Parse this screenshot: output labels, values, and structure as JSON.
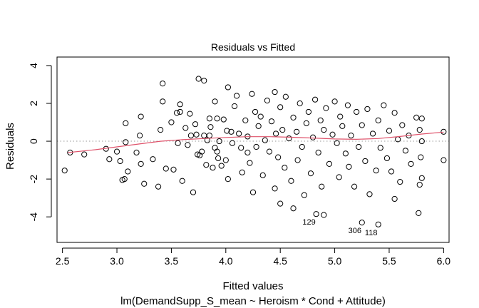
{
  "chart_data": {
    "type": "scatter",
    "title": "Residuals vs Fitted",
    "xlabel": "Fitted values",
    "ylabel": "Residuals",
    "subtitle": "lm(DemandSupp_S_mean ~ Heroism * Cond + Attitude)",
    "xlim": [
      2.45,
      6.05
    ],
    "ylim": [
      -5.35,
      4.45
    ],
    "x_ticks": [
      2.5,
      3.0,
      3.5,
      4.0,
      4.5,
      5.0,
      5.5,
      6.0
    ],
    "x_tick_labels": [
      "2.5",
      "3.0",
      "3.5",
      "4.0",
      "4.5",
      "5.0",
      "5.5",
      "6.0"
    ],
    "y_ticks": [
      -4,
      -2,
      0,
      2,
      4
    ],
    "y_tick_labels": [
      "-4",
      "-2",
      "0",
      "2",
      "4"
    ],
    "reference_line": 0,
    "smooth_color": "#DF536B",
    "smooth_line": [
      [
        2.55,
        -0.6
      ],
      [
        2.8,
        -0.45
      ],
      [
        3.0,
        -0.3
      ],
      [
        3.2,
        -0.15
      ],
      [
        3.4,
        0.0
      ],
      [
        3.6,
        0.08
      ],
      [
        3.8,
        0.14
      ],
      [
        4.0,
        0.2
      ],
      [
        4.2,
        0.24
      ],
      [
        4.4,
        0.24
      ],
      [
        4.6,
        0.21
      ],
      [
        4.8,
        0.17
      ],
      [
        5.0,
        0.12
      ],
      [
        5.2,
        0.1
      ],
      [
        5.4,
        0.14
      ],
      [
        5.6,
        0.25
      ],
      [
        5.8,
        0.38
      ],
      [
        6.0,
        0.48
      ]
    ],
    "labeled_points": [
      {
        "label": "129",
        "x": 4.83,
        "y": -3.85
      },
      {
        "label": "306",
        "x": 5.25,
        "y": -4.3
      },
      {
        "label": "118",
        "x": 5.4,
        "y": -4.4
      }
    ],
    "points": [
      [
        2.52,
        -1.55
      ],
      [
        2.57,
        -0.6
      ],
      [
        2.7,
        -0.7
      ],
      [
        2.9,
        -0.4
      ],
      [
        2.93,
        -0.95
      ],
      [
        3.0,
        -0.55
      ],
      [
        3.03,
        -1.05
      ],
      [
        3.05,
        -2.05
      ],
      [
        3.07,
        -2.0
      ],
      [
        3.08,
        -0.05
      ],
      [
        3.08,
        0.95
      ],
      [
        3.1,
        -1.6
      ],
      [
        3.18,
        -0.6
      ],
      [
        3.21,
        0.3
      ],
      [
        3.22,
        1.3
      ],
      [
        3.22,
        -1.2
      ],
      [
        3.25,
        -2.25
      ],
      [
        3.33,
        -0.95
      ],
      [
        3.38,
        -2.4
      ],
      [
        3.4,
        0.6
      ],
      [
        3.42,
        2.1
      ],
      [
        3.42,
        3.05
      ],
      [
        3.45,
        -1.45
      ],
      [
        3.5,
        1.0
      ],
      [
        3.52,
        -1.5
      ],
      [
        3.55,
        1.5
      ],
      [
        3.56,
        -0.1
      ],
      [
        3.58,
        1.95
      ],
      [
        3.58,
        1.55
      ],
      [
        3.6,
        -2.1
      ],
      [
        3.63,
        0.7
      ],
      [
        3.65,
        -0.2
      ],
      [
        3.67,
        1.45
      ],
      [
        3.68,
        0.3
      ],
      [
        3.7,
        -2.7
      ],
      [
        3.72,
        0.9
      ],
      [
        3.73,
        0.35
      ],
      [
        3.74,
        -0.7
      ],
      [
        3.75,
        3.3
      ],
      [
        3.76,
        -0.75
      ],
      [
        3.78,
        -0.55
      ],
      [
        3.8,
        3.2
      ],
      [
        3.8,
        0.3
      ],
      [
        3.82,
        -1.25
      ],
      [
        3.83,
        0.05
      ],
      [
        3.85,
        1.2
      ],
      [
        3.85,
        0.3
      ],
      [
        3.86,
        0.75
      ],
      [
        3.88,
        -1.4
      ],
      [
        3.9,
        -0.35
      ],
      [
        3.9,
        2.1
      ],
      [
        3.92,
        1.2
      ],
      [
        3.92,
        -0.55
      ],
      [
        3.93,
        -0.9
      ],
      [
        3.94,
        0.0
      ],
      [
        3.96,
        -1.3
      ],
      [
        3.98,
        1.15
      ],
      [
        4.0,
        -1.0
      ],
      [
        4.01,
        0.55
      ],
      [
        4.02,
        -2.0
      ],
      [
        4.02,
        2.85
      ],
      [
        4.05,
        0.5
      ],
      [
        4.06,
        -0.1
      ],
      [
        4.08,
        1.85
      ],
      [
        4.1,
        2.4
      ],
      [
        4.12,
        0.4
      ],
      [
        4.14,
        -0.35
      ],
      [
        4.15,
        -1.65
      ],
      [
        4.18,
        1.1
      ],
      [
        4.2,
        0.25
      ],
      [
        4.2,
        -0.6
      ],
      [
        4.22,
        -1.15
      ],
      [
        4.24,
        2.5
      ],
      [
        4.25,
        -2.7
      ],
      [
        4.27,
        1.55
      ],
      [
        4.28,
        -0.3
      ],
      [
        4.3,
        0.8
      ],
      [
        4.32,
        1.3
      ],
      [
        4.34,
        -1.8
      ],
      [
        4.36,
        0.05
      ],
      [
        4.38,
        2.15
      ],
      [
        4.4,
        -0.55
      ],
      [
        4.42,
        1.05
      ],
      [
        4.45,
        -2.5
      ],
      [
        4.45,
        2.6
      ],
      [
        4.46,
        0.4
      ],
      [
        4.48,
        -0.85
      ],
      [
        4.5,
        1.8
      ],
      [
        4.5,
        -3.3
      ],
      [
        4.52,
        0.6
      ],
      [
        4.54,
        -1.4
      ],
      [
        4.55,
        2.35
      ],
      [
        4.58,
        0.15
      ],
      [
        4.6,
        -2.1
      ],
      [
        4.62,
        -3.55
      ],
      [
        4.62,
        1.25
      ],
      [
        4.65,
        0.5
      ],
      [
        4.66,
        -1.0
      ],
      [
        4.68,
        2.0
      ],
      [
        4.7,
        -0.3
      ],
      [
        4.72,
        -2.85
      ],
      [
        4.74,
        0.95
      ],
      [
        4.76,
        1.55
      ],
      [
        4.78,
        -1.7
      ],
      [
        4.8,
        0.2
      ],
      [
        4.82,
        2.2
      ],
      [
        4.83,
        -3.85
      ],
      [
        4.85,
        -0.6
      ],
      [
        4.87,
        1.1
      ],
      [
        4.88,
        -2.4
      ],
      [
        4.9,
        0.6
      ],
      [
        4.9,
        -3.9
      ],
      [
        4.92,
        1.75
      ],
      [
        4.95,
        -1.2
      ],
      [
        4.98,
        0.35
      ],
      [
        5.0,
        2.1
      ],
      [
        5.02,
        -0.1
      ],
      [
        5.04,
        -1.9
      ],
      [
        5.05,
        1.3
      ],
      [
        5.07,
        0.8
      ],
      [
        5.1,
        -0.65
      ],
      [
        5.12,
        1.9
      ],
      [
        5.13,
        -1.35
      ],
      [
        5.15,
        0.3
      ],
      [
        5.18,
        -2.4
      ],
      [
        5.2,
        1.55
      ],
      [
        5.22,
        -0.3
      ],
      [
        5.25,
        -4.3
      ],
      [
        5.25,
        0.85
      ],
      [
        5.28,
        -1.05
      ],
      [
        5.3,
        1.7
      ],
      [
        5.32,
        -2.8
      ],
      [
        5.35,
        0.4
      ],
      [
        5.38,
        -1.55
      ],
      [
        5.4,
        -4.4
      ],
      [
        5.4,
        1.1
      ],
      [
        5.42,
        -0.35
      ],
      [
        5.45,
        1.9
      ],
      [
        5.48,
        -0.9
      ],
      [
        5.5,
        0.55
      ],
      [
        5.52,
        -1.6
      ],
      [
        5.55,
        1.5
      ],
      [
        5.55,
        -3.05
      ],
      [
        5.58,
        0.1
      ],
      [
        5.6,
        -2.15
      ],
      [
        5.62,
        0.85
      ],
      [
        5.65,
        -0.5
      ],
      [
        5.68,
        0.3
      ],
      [
        5.7,
        -1.2
      ],
      [
        5.75,
        1.25
      ],
      [
        5.77,
        -3.8
      ],
      [
        5.78,
        -2.3
      ],
      [
        5.78,
        0.6
      ],
      [
        5.79,
        -0.85
      ],
      [
        5.8,
        1.2
      ],
      [
        5.8,
        -1.95
      ],
      [
        5.8,
        0.0
      ],
      [
        6.0,
        0.5
      ],
      [
        6.0,
        -1.0
      ]
    ]
  }
}
